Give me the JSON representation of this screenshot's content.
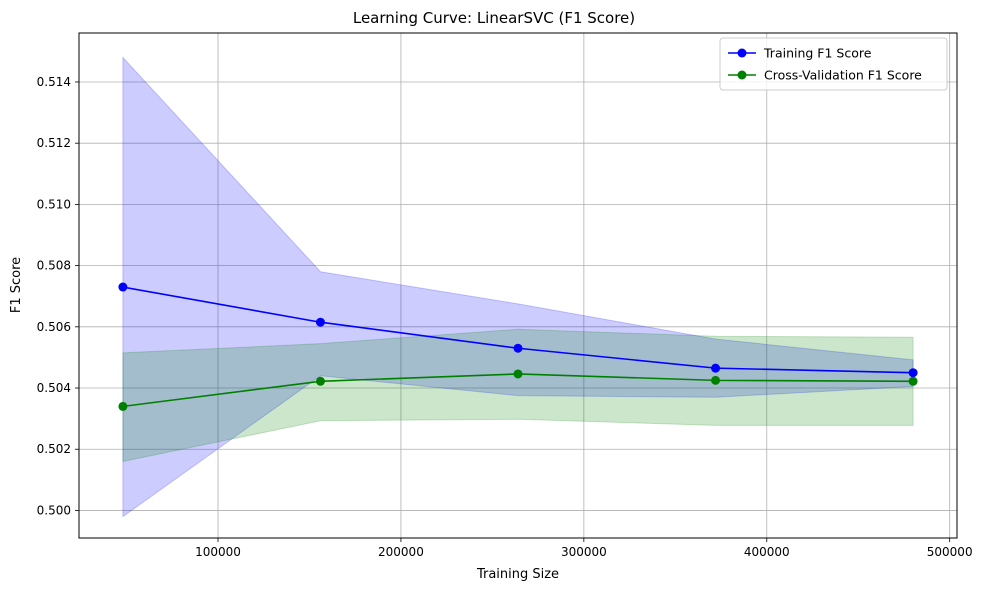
{
  "chart_data": {
    "type": "line",
    "title": "Learning Curve: LinearSVC (F1 Score)",
    "xlabel": "Training Size",
    "ylabel": "F1 Score",
    "xlim": [
      24000,
      504000
    ],
    "ylim": [
      0.4991,
      0.5156
    ],
    "x_ticks": [
      {
        "value": 100000,
        "label": "100000"
      },
      {
        "value": 200000,
        "label": "200000"
      },
      {
        "value": 300000,
        "label": "300000"
      },
      {
        "value": 400000,
        "label": "400000"
      },
      {
        "value": 500000,
        "label": "500000"
      }
    ],
    "y_ticks": [
      {
        "value": 0.5,
        "label": "0.500"
      },
      {
        "value": 0.502,
        "label": "0.502"
      },
      {
        "value": 0.504,
        "label": "0.504"
      },
      {
        "value": 0.506,
        "label": "0.506"
      },
      {
        "value": 0.508,
        "label": "0.508"
      },
      {
        "value": 0.51,
        "label": "0.510"
      },
      {
        "value": 0.512,
        "label": "0.512"
      },
      {
        "value": 0.514,
        "label": "0.514"
      }
    ],
    "grid": true,
    "legend_position": "top-right",
    "x": [
      48000,
      156000,
      264000,
      372000,
      480000
    ],
    "series": [
      {
        "name": "Training F1 Score",
        "color": "#0000ff",
        "band_color": "#0000ff",
        "values": [
          0.5073,
          0.50615,
          0.5053,
          0.50465,
          0.5045
        ],
        "band_lower": [
          0.4998,
          0.5044,
          0.50375,
          0.5037,
          0.50405
        ],
        "band_upper": [
          0.5148,
          0.5078,
          0.50675,
          0.5056,
          0.50492
        ]
      },
      {
        "name": "Cross-Validation F1 Score",
        "color": "#008000",
        "band_color": "#008000",
        "values": [
          0.5034,
          0.50422,
          0.50446,
          0.50425,
          0.50422
        ],
        "band_lower": [
          0.5016,
          0.50293,
          0.50298,
          0.50278,
          0.50278
        ],
        "band_upper": [
          0.50515,
          0.50545,
          0.50592,
          0.50569,
          0.50566
        ]
      }
    ]
  }
}
